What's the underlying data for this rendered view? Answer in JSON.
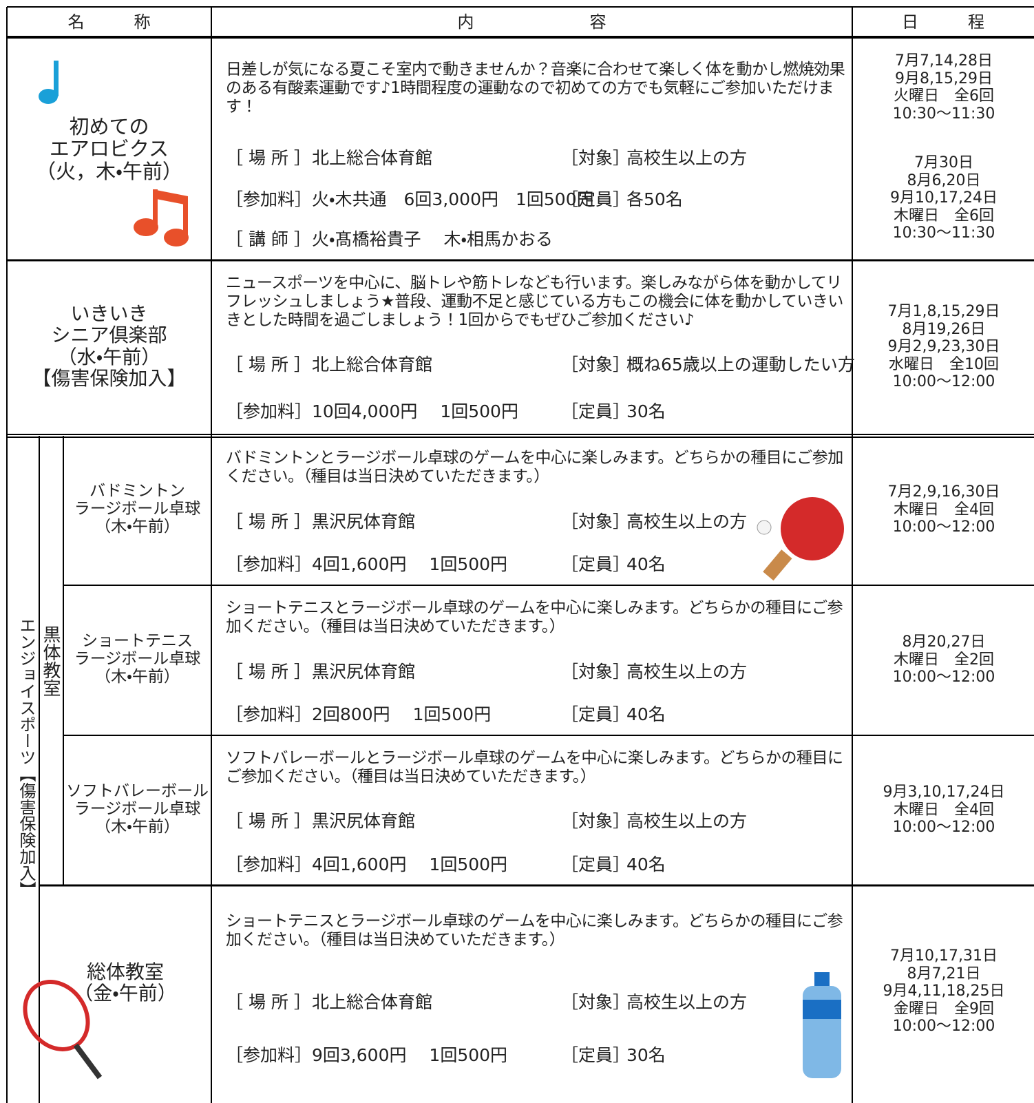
{
  "header": {
    "name": "名　　　称",
    "content": "内　　　　　　　容",
    "schedule": "日　　　程"
  },
  "side_groups": {
    "enjoy_sports": "エンジョイスポーツ【傷害保険加入】",
    "kurotai": "黒体教室"
  },
  "rows": [
    {
      "name": [
        "初めての",
        "エアロビクス",
        "（火，木・午前）"
      ],
      "description": "日差しが気になる夏こそ室内で動きませんか？音楽に合わせて楽しく体を動かし燃焼効果のある有酸素運動です♪1時間程度の運動なので初めての方でも気軽にご参加いただけます！",
      "fields": [
        [
          [
            "［ 場 所 ］",
            "北上総合体育館"
          ],
          [
            "［対象］",
            "高校生以上の方"
          ]
        ],
        [
          [
            "［参加料］",
            "火・木共通　6回3,000円　1回500円"
          ],
          [
            "［定員］",
            "各50名"
          ]
        ],
        [
          [
            "［ 講 師 ］",
            "火・髙橋裕貴子　 木・相馬かおる"
          ]
        ]
      ],
      "schedule": [
        [
          "7月7,14,28日",
          "9月8,15,29日",
          "火曜日　全6回",
          "10:30～11:30"
        ],
        [
          "7月30日",
          "8月6,20日",
          "9月10,17,24日",
          "木曜日　全6回",
          "10:30～11:30"
        ]
      ]
    },
    {
      "name": [
        "いきいき",
        "シニア倶楽部",
        "（水・午前）",
        "【傷害保険加入】"
      ],
      "description": "ニュースポーツを中心に、脳トレや筋トレなども行います。楽しみながら体を動かしてリフレッシュしましょう★普段、運動不足と感じている方もこの機会に体を動かしていきいきとした時間を過ごしましょう！1回からでもぜひご参加ください♪",
      "fields": [
        [
          [
            "［ 場 所 ］",
            "北上総合体育館"
          ],
          [
            "［対象］",
            "概ね65歳以上の運動したい方"
          ]
        ],
        [
          [
            "［参加料］",
            "10回4,000円　 1回500円"
          ],
          [
            "［定員］",
            "30名"
          ]
        ]
      ],
      "schedule": [
        [
          "7月1,8,15,29日",
          "8月19,26日",
          "9月2,9,23,30日",
          "水曜日　全10回",
          "10:00～12:00"
        ]
      ]
    },
    {
      "name": [
        "バドミントン",
        "ラージボール卓球",
        "（木・午前）"
      ],
      "description": "バドミントンとラージボール卓球のゲームを中心に楽しみます。どちらかの種目にご参加ください。（種目は当日決めていただきます。）",
      "fields": [
        [
          [
            "［ 場 所 ］",
            "黒沢尻体育館"
          ],
          [
            "［対象］",
            "高校生以上の方"
          ]
        ],
        [
          [
            "［参加料］",
            "4回1,600円　 1回500円"
          ],
          [
            "［定員］",
            "40名"
          ]
        ]
      ],
      "schedule": [
        [
          "7月2,9,16,30日",
          "木曜日　全4回",
          "10:00～12:00"
        ]
      ]
    },
    {
      "name": [
        "ショートテニス",
        "ラージボール卓球",
        "（木・午前）"
      ],
      "description": "ショートテニスとラージボール卓球のゲームを中心に楽しみます。どちらかの種目にご参加ください。（種目は当日決めていただきます。）",
      "fields": [
        [
          [
            "［ 場 所 ］",
            "黒沢尻体育館"
          ],
          [
            "［対象］",
            "高校生以上の方"
          ]
        ],
        [
          [
            "［参加料］",
            "2回800円　 1回500円"
          ],
          [
            "［定員］",
            "40名"
          ]
        ]
      ],
      "schedule": [
        [
          "8月20,27日",
          "木曜日　全2回",
          "10:00～12:00"
        ]
      ]
    },
    {
      "name": [
        "ソフトバレーボール",
        "ラージボール卓球",
        "（木・午前）"
      ],
      "description": "ソフトバレーボールとラージボール卓球のゲームを中心に楽しみます。どちらかの種目にご参加ください。（種目は当日決めていただきます。）",
      "fields": [
        [
          [
            "［ 場 所 ］",
            "黒沢尻体育館"
          ],
          [
            "［対象］",
            "高校生以上の方"
          ]
        ],
        [
          [
            "［参加料］",
            "4回1,600円　 1回500円"
          ],
          [
            "［定員］",
            "40名"
          ]
        ]
      ],
      "schedule": [
        [
          "9月3,10,17,24日",
          "木曜日　全4回",
          "10:00～12:00"
        ]
      ]
    },
    {
      "name": [
        "総体教室",
        "（金・午前）"
      ],
      "description": "ショートテニスとラージボール卓球のゲームを中心に楽しみます。どちらかの種目にご参加ください。（種目は当日決めていただきます。）",
      "fields": [
        [
          [
            "［ 場 所 ］",
            "北上総合体育館"
          ],
          [
            "［対象］",
            "高校生以上の方"
          ]
        ],
        [
          [
            "［参加料］",
            "9回3,600円　 1回500円"
          ],
          [
            "［定員］",
            "30名"
          ]
        ]
      ],
      "schedule": [
        [
          "7月10,17,31日",
          "8月7,21日",
          "9月4,11,18,25日",
          "金曜日　全9回",
          "10:00～12:00"
        ]
      ]
    }
  ]
}
